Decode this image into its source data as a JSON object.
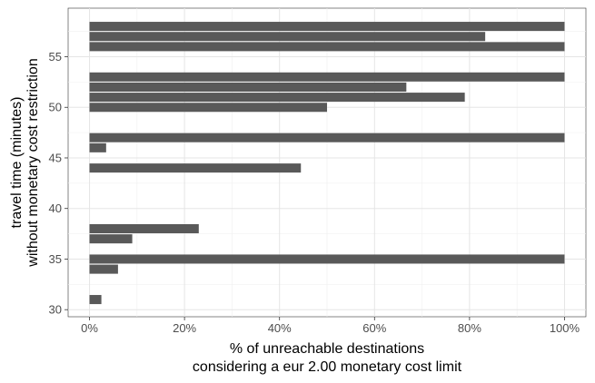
{
  "chart_data": {
    "type": "bar",
    "orientation": "horizontal",
    "xlabel": [
      "% of unreachable destinations",
      "considering a eur 2.00 monetary cost limit"
    ],
    "ylabel": [
      "travel time (minutes)",
      "without monetary cost restriction"
    ],
    "xlim": [
      -4.5,
      104.5
    ],
    "ylim": [
      29.3,
      59.8
    ],
    "xticks": [
      0,
      20,
      40,
      60,
      80,
      100
    ],
    "xtick_labels": [
      "0%",
      "20%",
      "40%",
      "60%",
      "80%",
      "100%"
    ],
    "yticks": [
      30,
      35,
      40,
      45,
      50,
      55
    ],
    "ytick_labels": [
      "30",
      "35",
      "40",
      "45",
      "50",
      "55"
    ],
    "grid": true,
    "bar_color": "#595959",
    "bars": [
      {
        "y": 31,
        "value": 2.5
      },
      {
        "y": 34,
        "value": 6
      },
      {
        "y": 35,
        "value": 100
      },
      {
        "y": 37,
        "value": 9
      },
      {
        "y": 38,
        "value": 23
      },
      {
        "y": 44,
        "value": 44.5
      },
      {
        "y": 46,
        "value": 3.5
      },
      {
        "y": 47,
        "value": 100
      },
      {
        "y": 50,
        "value": 50
      },
      {
        "y": 51,
        "value": 79
      },
      {
        "y": 52,
        "value": 66.7
      },
      {
        "y": 53,
        "value": 100
      },
      {
        "y": 56,
        "value": 100
      },
      {
        "y": 57,
        "value": 83.3
      },
      {
        "y": 58,
        "value": 100
      }
    ]
  }
}
